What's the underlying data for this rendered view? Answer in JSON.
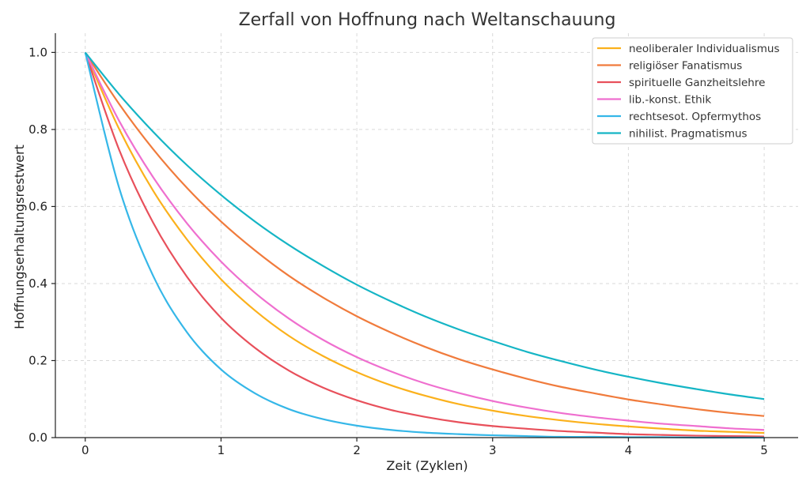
{
  "chart_data": {
    "type": "line",
    "title": "Zerfall von Hoffnung nach Weltanschauung",
    "xlabel": "Zeit (Zyklen)",
    "ylabel": "Hoffnungserhaltungsrestwert",
    "xlim": [
      -0.22,
      5.25
    ],
    "ylim": [
      0.0,
      1.05
    ],
    "x_ticks": [
      0,
      1,
      2,
      3,
      4,
      5
    ],
    "y_ticks": [
      0.0,
      0.2,
      0.4,
      0.6,
      0.8,
      1.0
    ],
    "x_tick_labels": [
      "0",
      "1",
      "2",
      "3",
      "4",
      "5"
    ],
    "y_tick_labels": [
      "0.0",
      "0.2",
      "0.4",
      "0.6",
      "0.8",
      "1.0"
    ],
    "grid": true,
    "legend_position": "top-right",
    "x": [
      0,
      0.25,
      0.5,
      0.75,
      1,
      1.25,
      1.5,
      1.75,
      2,
      2.25,
      2.5,
      2.75,
      3,
      3.25,
      3.5,
      3.75,
      4,
      4.25,
      4.5,
      4.75,
      5
    ],
    "series": [
      {
        "name": "neoliberaler Individualismus",
        "color": "#fbb11c",
        "values": [
          1.0,
          0.801,
          0.641,
          0.514,
          0.411,
          0.33,
          0.264,
          0.212,
          0.17,
          0.136,
          0.109,
          0.087,
          0.07,
          0.056,
          0.045,
          0.036,
          0.029,
          0.023,
          0.018,
          0.015,
          0.012
        ]
      },
      {
        "name": "religiöser Fanatismus",
        "color": "#f07b3c",
        "values": [
          1.0,
          0.866,
          0.749,
          0.648,
          0.561,
          0.486,
          0.42,
          0.364,
          0.315,
          0.273,
          0.236,
          0.204,
          0.177,
          0.153,
          0.132,
          0.115,
          0.099,
          0.086,
          0.074,
          0.064,
          0.056
        ]
      },
      {
        "name": "spirituelle Ganzheitslehre",
        "color": "#e8505b",
        "values": [
          1.0,
          0.747,
          0.558,
          0.417,
          0.311,
          0.233,
          0.174,
          0.13,
          0.097,
          0.072,
          0.054,
          0.04,
          0.03,
          0.023,
          0.017,
          0.013,
          0.009,
          0.007,
          0.005,
          0.004,
          0.003
        ]
      },
      {
        "name": "lib.-konst. Ethik",
        "color": "#ef6fcf",
        "values": [
          1.0,
          0.822,
          0.676,
          0.556,
          0.457,
          0.376,
          0.309,
          0.254,
          0.209,
          0.172,
          0.141,
          0.116,
          0.095,
          0.078,
          0.064,
          0.053,
          0.044,
          0.036,
          0.03,
          0.024,
          0.02
        ]
      },
      {
        "name": "rechtsesot. Opfermythos",
        "color": "#35b7e8",
        "values": [
          1.0,
          0.648,
          0.42,
          0.273,
          0.177,
          0.115,
          0.074,
          0.048,
          0.031,
          0.02,
          0.013,
          0.009,
          0.006,
          0.004,
          0.002,
          0.002,
          0.001,
          0.001,
          0.0,
          0.0,
          0.0
        ]
      },
      {
        "name": "nihilist. Pragmatismus",
        "color": "#15b5c5",
        "values": [
          1.0,
          0.891,
          0.794,
          0.707,
          0.63,
          0.561,
          0.5,
          0.446,
          0.397,
          0.354,
          0.315,
          0.281,
          0.251,
          0.223,
          0.199,
          0.177,
          0.158,
          0.141,
          0.126,
          0.112,
          0.1
        ]
      }
    ]
  }
}
